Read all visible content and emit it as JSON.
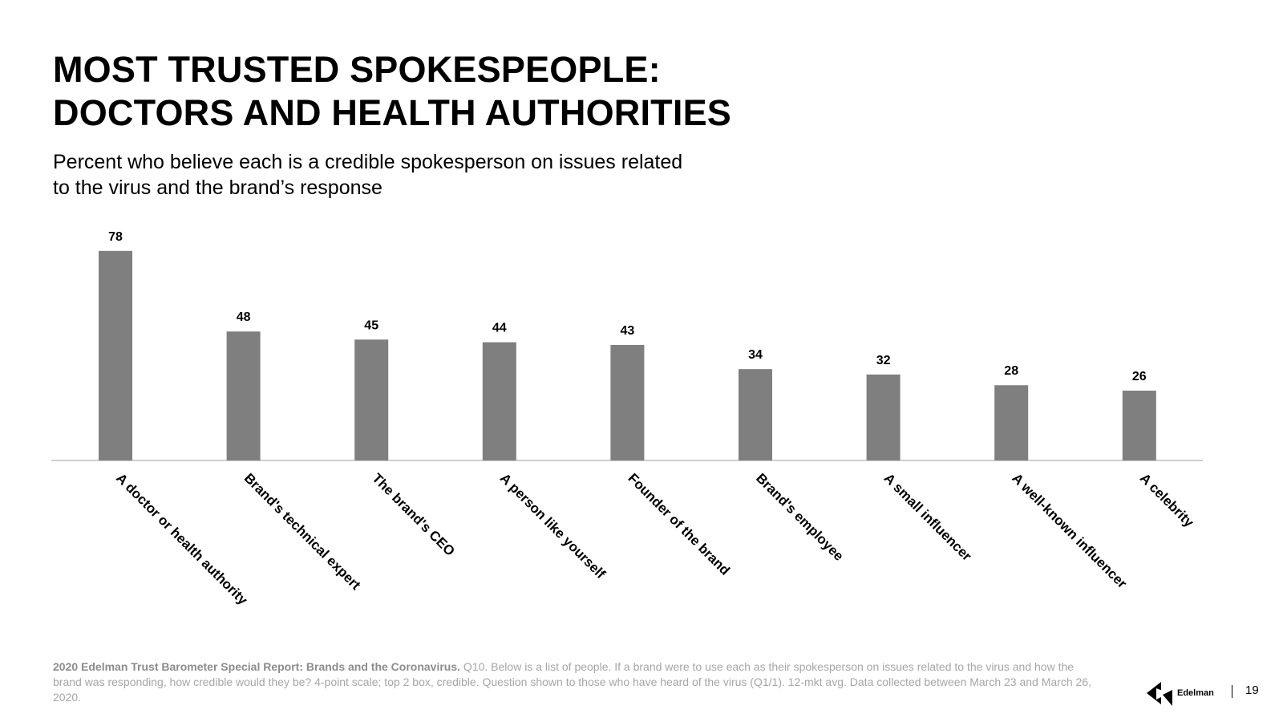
{
  "header": {
    "title_line1": "MOST TRUSTED SPOKESPEOPLE:",
    "title_line2": "DOCTORS AND HEALTH AUTHORITIES",
    "subtitle_line1": "Percent who believe each is a credible spokesperson on issues related",
    "subtitle_line2": "to the virus and the brand’s response"
  },
  "colors": {
    "bar": "#7f7f7f",
    "axis": "#bfbfbf",
    "footnote": "#a6a6a6"
  },
  "chart_data": {
    "type": "bar",
    "title": "Percent who believe each is a credible spokesperson on issues related to the virus and the brand’s response",
    "categories": [
      "A doctor or health authority",
      "Brand's technical expert",
      "The brand's CEO",
      "A person like yourself",
      "Founder of the brand",
      "Brand's employee",
      "A small influencer",
      "A well-known influencer",
      "A celebrity"
    ],
    "values": [
      78,
      48,
      45,
      44,
      43,
      34,
      32,
      28,
      26
    ],
    "ylim": [
      0,
      80
    ],
    "xlabel": "",
    "ylabel": "",
    "grid": false,
    "legend": "none",
    "data_labels": true
  },
  "footer": {
    "source_bold": "2020 Edelman Trust Barometer Special Report: Brands and the Coronavirus.",
    "source_text": " Q10. Below is a list of people. If a brand were to use each as their spokesperson on issues related to the virus and how the brand was responding, how credible would they be? 4-point scale; top 2 box, credible. Question shown to those who have heard of the virus (Q1/1). 12-mkt avg. Data collected between March 23 and March 26, 2020.",
    "logo_text": "Edelman",
    "logo_icon": "edelman-logo-icon",
    "page_number": "19"
  }
}
